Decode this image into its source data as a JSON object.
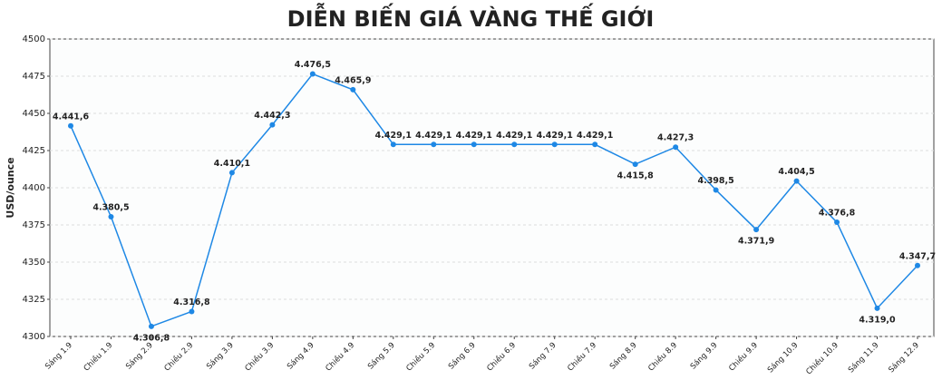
{
  "chart_data": {
    "type": "line",
    "title": "DIỄN BIẾN GIÁ VÀNG THẾ GIỚI",
    "y_label": "USD/ounce",
    "categories": [
      "Sáng 1.9",
      "Chiều 1.9",
      "Sáng 2.9",
      "Chiều 2.9",
      "Sáng 3.9",
      "Chiều 3.9",
      "Sáng 4.9",
      "Chiều 4.9",
      "Sáng 5.9",
      "Chiều 5.9",
      "Sáng 6.9",
      "Chiều 6.9",
      "Sáng 7.9",
      "Chiều 7.9",
      "Sáng 8.9",
      "Chiều 8.9",
      "Sáng 9.9",
      "Chiều 9.9",
      "Sáng 10.9",
      "Chiều 10.9",
      "Sáng 11.9",
      "Sáng 12.9"
    ],
    "values": [
      4441.6,
      4380.5,
      4306.8,
      4316.8,
      4410.1,
      4442.3,
      4476.5,
      4465.9,
      4429.1,
      4429.1,
      4429.1,
      4429.1,
      4429.1,
      4429.1,
      4415.8,
      4427.3,
      4398.5,
      4371.9,
      4404.5,
      4376.8,
      4319.0,
      4347.7
    ],
    "value_labels": [
      "4.441,6",
      "4.380,5",
      "4.306,8",
      "4.316,8",
      "4.410,1",
      "4.442,3",
      "4.476,5",
      "4.465,9",
      "4.429,1",
      "4.429,1",
      "4.429,1",
      "4.429,1",
      "4.429,1",
      "4.429,1",
      "4.415,8",
      "4.427,3",
      "4.398,5",
      "4.371,9",
      "4.404,5",
      "4.376,8",
      "4.319,0",
      "4.347,7"
    ],
    "color": "#1e88e5",
    "ylim": [
      4300,
      4500
    ],
    "yticks": [
      4300,
      4325,
      4350,
      4375,
      4400,
      4425,
      4450,
      4475,
      4500
    ],
    "grid": true
  }
}
